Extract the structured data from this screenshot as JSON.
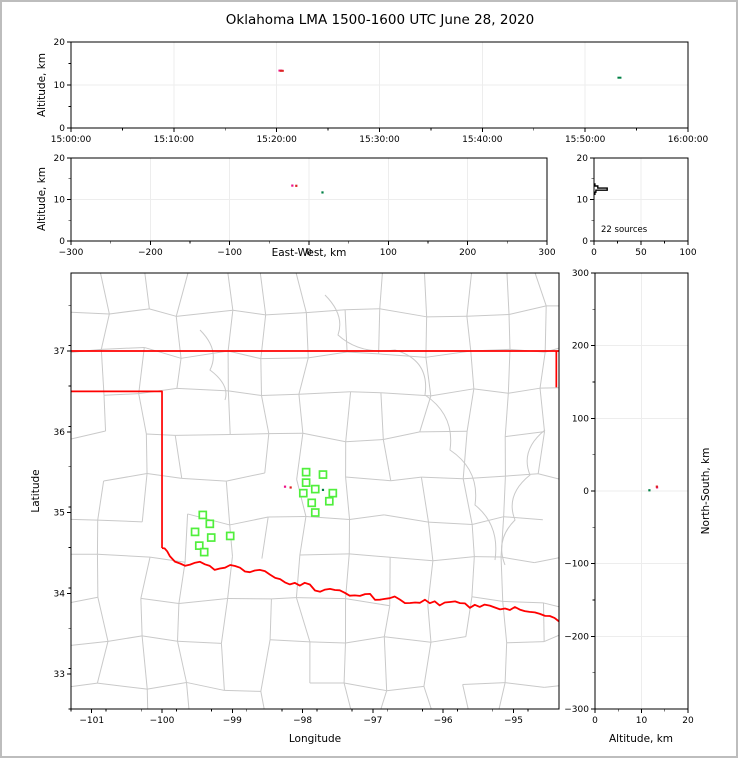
{
  "title": "Oklahoma LMA 1500-1600 UTC June 28, 2020",
  "colors": {
    "state_border": "#ff0000",
    "county_line": "#c9c9c9",
    "station_marker": "#50ef3c",
    "histogram_line": "#000000",
    "grid_line": "#ededed",
    "frame": "#000000"
  },
  "sources": [
    {
      "time": "15:20:22",
      "t_s": 1222,
      "lon": -98.25,
      "lat": 35.32,
      "ew_km": -21,
      "ns_km": 5,
      "alt_km": 13.35,
      "color": "#ee1289"
    },
    {
      "time": "15:20:30",
      "t_s": 1230,
      "lon": -98.17,
      "lat": 35.31,
      "ew_km": -16,
      "ns_km": 6,
      "alt_km": 13.3,
      "color": "#dd2222"
    },
    {
      "time": "15:53:20",
      "t_s": 3200,
      "lon": -97.71,
      "lat": 35.28,
      "ew_km": 17,
      "ns_km": 1,
      "alt_km": 11.7,
      "color": "#008045"
    }
  ],
  "stations": [
    {
      "lon": -97.95,
      "lat": 35.5
    },
    {
      "lon": -97.71,
      "lat": 35.47
    },
    {
      "lon": -97.95,
      "lat": 35.37
    },
    {
      "lon": -97.82,
      "lat": 35.29
    },
    {
      "lon": -97.99,
      "lat": 35.24
    },
    {
      "lon": -97.57,
      "lat": 35.24
    },
    {
      "lon": -97.62,
      "lat": 35.14
    },
    {
      "lon": -97.87,
      "lat": 35.12
    },
    {
      "lon": -97.82,
      "lat": 35.0
    },
    {
      "lon": -99.42,
      "lat": 34.97
    },
    {
      "lon": -99.32,
      "lat": 34.86
    },
    {
      "lon": -99.53,
      "lat": 34.76
    },
    {
      "lon": -99.3,
      "lat": 34.69
    },
    {
      "lon": -99.03,
      "lat": 34.71
    },
    {
      "lon": -99.47,
      "lat": 34.59
    },
    {
      "lon": -99.4,
      "lat": 34.51
    }
  ],
  "oklahoma_border": {
    "north_lat": 37.0,
    "east_lon": -94.39,
    "east_lat_range": [
      36.55,
      37.0
    ],
    "panhandle_lat": 36.5,
    "panhandle_corner_lon": -100.0,
    "west_corner_lat": 34.56,
    "red_river": [
      [
        -100.0,
        34.56
      ],
      [
        -99.89,
        34.46
      ],
      [
        -99.67,
        34.34
      ],
      [
        -99.46,
        34.39
      ],
      [
        -99.25,
        34.29
      ],
      [
        -99.03,
        34.35
      ],
      [
        -98.82,
        34.27
      ],
      [
        -98.61,
        34.29
      ],
      [
        -98.39,
        34.19
      ],
      [
        -98.18,
        34.11
      ],
      [
        -97.97,
        34.13
      ],
      [
        -97.75,
        34.02
      ],
      [
        -97.54,
        34.04
      ],
      [
        -97.33,
        33.97
      ],
      [
        -97.11,
        33.99
      ],
      [
        -96.9,
        33.92
      ],
      [
        -96.69,
        33.96
      ],
      [
        -96.47,
        33.88
      ],
      [
        -96.26,
        33.92
      ],
      [
        -96.05,
        33.85
      ],
      [
        -95.83,
        33.9
      ],
      [
        -95.62,
        33.82
      ],
      [
        -95.41,
        33.86
      ],
      [
        -95.19,
        33.8
      ],
      [
        -94.98,
        33.83
      ],
      [
        -94.77,
        33.77
      ],
      [
        -94.55,
        33.72
      ],
      [
        -94.35,
        33.65
      ]
    ]
  },
  "chart_data": [
    {
      "id": "time_height",
      "type": "scatter",
      "ylabel": "Altitude, km",
      "xlim": [
        0,
        3600
      ],
      "ylim": [
        0,
        20
      ],
      "xtick_values": [
        0,
        600,
        1200,
        1800,
        2400,
        3000,
        3600
      ],
      "xtick_labels": [
        "15:00:00",
        "15:10:00",
        "15:20:00",
        "15:30:00",
        "15:40:00",
        "15:50:00",
        "16:00:00"
      ],
      "ytick_values": [
        0,
        10,
        20
      ],
      "ytick_labels": [
        "0",
        "10",
        "20"
      ]
    },
    {
      "id": "ew_height",
      "type": "scatter",
      "xlabel": "East-West, km",
      "ylabel": "Altitude, km",
      "xlim": [
        -300,
        300
      ],
      "ylim": [
        0,
        20
      ],
      "xtick_values": [
        -300,
        -200,
        -100,
        0,
        100,
        200,
        300
      ],
      "xtick_labels": [
        "−300",
        "−200",
        "−100",
        "0",
        "100",
        "200",
        "300"
      ],
      "ytick_values": [
        0,
        10,
        20
      ],
      "ytick_labels": [
        "0",
        "10",
        "20"
      ]
    },
    {
      "id": "alt_histogram",
      "type": "line",
      "annotation": "22 sources",
      "xlim": [
        0,
        100
      ],
      "ylim": [
        0,
        20
      ],
      "xtick_values": [
        0,
        50,
        100
      ],
      "xtick_labels": [
        "0",
        "50",
        "100"
      ],
      "ytick_values": [
        0,
        10,
        20
      ],
      "ytick_labels": [
        "0",
        "10",
        "20"
      ],
      "profile": [
        {
          "alt": 11.5,
          "count": 1
        },
        {
          "alt": 12.0,
          "count": 2
        },
        {
          "alt": 12.5,
          "count": 14
        },
        {
          "alt": 13.0,
          "count": 4
        },
        {
          "alt": 13.5,
          "count": 1
        }
      ]
    },
    {
      "id": "map",
      "type": "scatter",
      "xlabel": "Longitude",
      "ylabel": "Latitude",
      "xlim": [
        -101.295,
        -94.352
      ],
      "ylim": [
        32.567,
        37.966
      ],
      "xtick_values": [
        -101,
        -100,
        -99,
        -98,
        -97,
        -96,
        -95
      ],
      "xtick_labels": [
        "−101",
        "−100",
        "−99",
        "−98",
        "−97",
        "−96",
        "−95"
      ],
      "ytick_values": [
        33,
        34,
        35,
        36,
        37
      ],
      "ytick_labels": [
        "33",
        "34",
        "35",
        "36",
        "37"
      ]
    },
    {
      "id": "ns_height",
      "type": "scatter",
      "xlabel": "Altitude, km",
      "ylabel": "North-South, km",
      "xlim": [
        0,
        20
      ],
      "ylim": [
        -300,
        300
      ],
      "xtick_values": [
        0,
        10,
        20
      ],
      "xtick_labels": [
        "0",
        "10",
        "20"
      ],
      "ytick_values": [
        -300,
        -200,
        -100,
        0,
        100,
        200,
        300
      ],
      "ytick_labels": [
        "−300",
        "−200",
        "−100",
        "0",
        "100",
        "200",
        "300"
      ]
    }
  ]
}
